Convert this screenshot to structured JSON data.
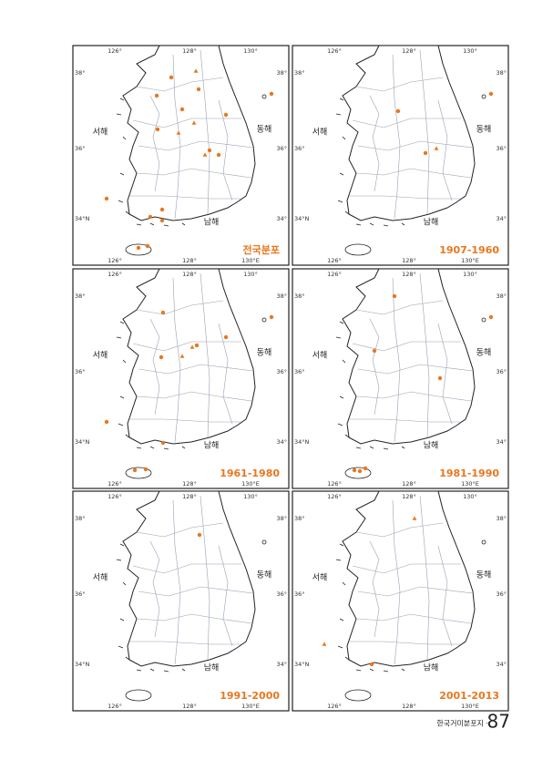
{
  "map_labels": {
    "top": [
      "126°",
      "128°",
      "130°"
    ],
    "bottom": [
      "126°",
      "128°",
      "130°E"
    ],
    "left": [
      "38°",
      "36°",
      "34°N"
    ],
    "right": [
      "38°",
      "36°",
      "34°"
    ],
    "west_sea": "서해",
    "east_sea": "동해",
    "south_sea": "남해"
  },
  "panels": [
    {
      "title": "전국분포"
    },
    {
      "title": "1907-1960"
    },
    {
      "title": "1961-1980"
    },
    {
      "title": "1981-1990"
    },
    {
      "title": "1991-2000"
    },
    {
      "title": "2001-2013"
    }
  ],
  "footer": {
    "book": "한국거미분포지 ·",
    "page": "87"
  }
}
